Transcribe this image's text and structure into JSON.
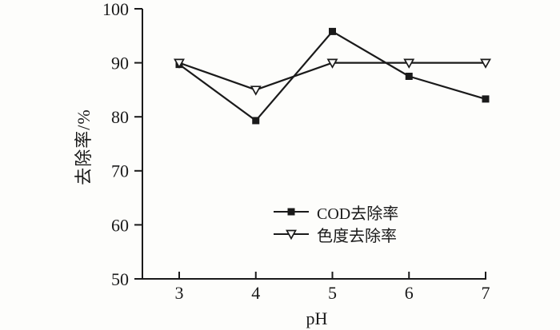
{
  "colors": {
    "line": "#1a1a1a",
    "background": "#fdfdfb",
    "marker_open_fill": "#fdfdfb"
  },
  "chart_data": {
    "type": "line",
    "x": [
      3,
      4,
      5,
      6,
      7
    ],
    "xticks": [
      3,
      4,
      5,
      6,
      7
    ],
    "yticks": [
      50,
      60,
      70,
      80,
      90,
      100
    ],
    "xlim": [
      2.5,
      7.05
    ],
    "ylim": [
      50,
      100
    ],
    "xlabel": "pH",
    "ylabel": "去除率/%",
    "grid": false,
    "legend_position": "inside bottom-center",
    "series": [
      {
        "name": "COD去除率",
        "marker": "filled-square",
        "values": [
          89.7,
          79.3,
          95.8,
          87.5,
          83.3
        ]
      },
      {
        "name": "色度去除率",
        "marker": "open-triangle-down",
        "values": [
          90,
          85,
          90,
          90,
          90
        ]
      }
    ]
  }
}
